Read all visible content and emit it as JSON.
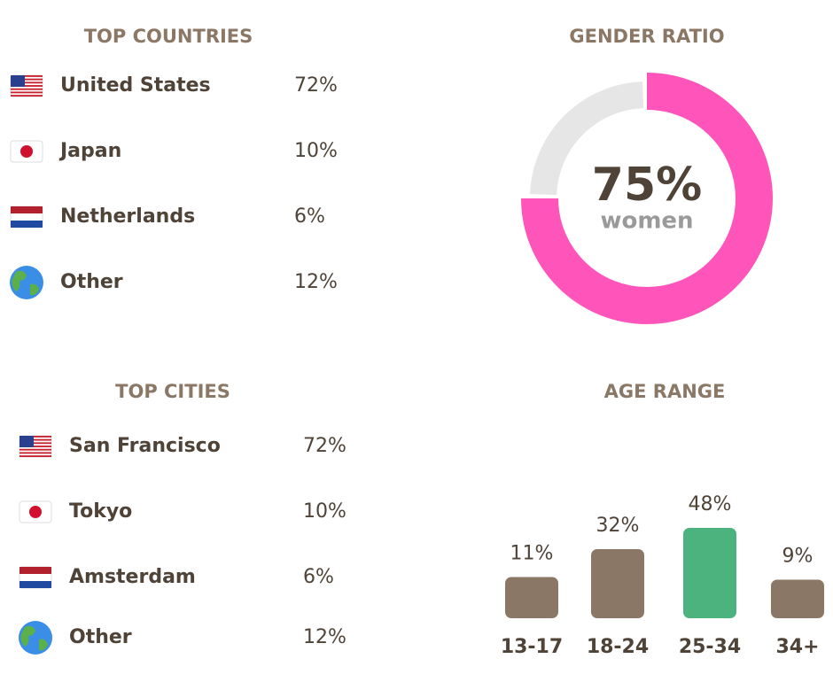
{
  "countries": {
    "title": "TOP COUNTRIES",
    "rows": [
      {
        "name": "United States",
        "share": "72%"
      },
      {
        "name": "Japan",
        "share": "10%"
      },
      {
        "name": "Netherlands",
        "share": "6%"
      },
      {
        "name": "Other",
        "share": "12%"
      }
    ]
  },
  "cities": {
    "title": "TOP CITIES",
    "rows": [
      {
        "name": "San Francisco",
        "share": "72%"
      },
      {
        "name": "Tokyo",
        "share": "10%"
      },
      {
        "name": "Amsterdam",
        "share": "6%"
      },
      {
        "name": "Other",
        "share": "12%"
      }
    ]
  },
  "chart_data": [
    {
      "type": "donut",
      "title": "GENDER RATIO",
      "value": 75,
      "value_label": "75%",
      "caption": "women",
      "ylim": [
        0,
        100
      ],
      "color": "#ff55bb",
      "rest_color": "#e6e6e6"
    },
    {
      "type": "bar",
      "title": "AGE RANGE",
      "categories": [
        "13-17",
        "18-24",
        "25-34",
        "34+"
      ],
      "values": [
        11,
        32,
        48,
        9
      ],
      "value_labels": [
        "11%",
        "32%",
        "48%",
        "9%"
      ],
      "colors": [
        "#8b7765",
        "#8b7765",
        "#4db37e",
        "#8b7765"
      ]
    }
  ]
}
